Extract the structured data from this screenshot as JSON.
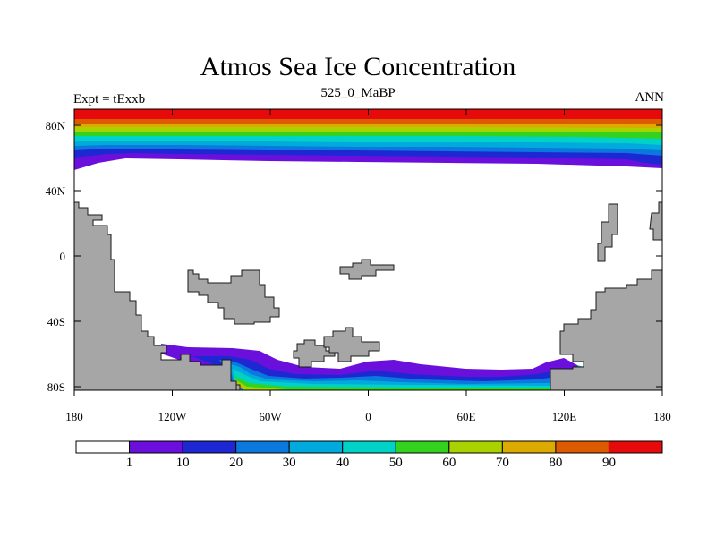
{
  "title": "Atmos Sea Ice Concentration",
  "subtitle": "525_0_MaBP",
  "left_string": "Expt = tExxb",
  "right_string": "ANN",
  "lat_ticks": [
    "80N",
    "40N",
    "0",
    "40S",
    "80S"
  ],
  "lon_ticks": [
    "180",
    "120W",
    "60W",
    "0",
    "60E",
    "120E",
    "180"
  ],
  "colorbar": {
    "levels": [
      "1",
      "10",
      "20",
      "30",
      "40",
      "50",
      "60",
      "70",
      "80",
      "90"
    ],
    "colors": [
      "#ffffff",
      "#6a0fdc",
      "#1e28d2",
      "#0a78dc",
      "#00aadc",
      "#00d2c8",
      "#32d21e",
      "#aad200",
      "#dcaa00",
      "#dc5a00",
      "#e60a0a"
    ]
  },
  "colors": {
    "land": "#a6a6a6",
    "coast": "#1a1a1a",
    "ocean": "#ffffff"
  }
}
